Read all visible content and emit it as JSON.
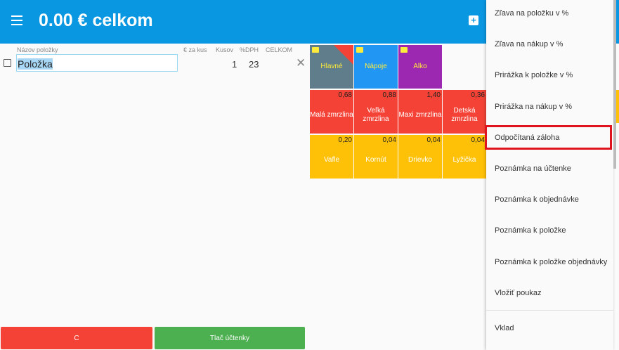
{
  "header": {
    "title": "0.00 € celkom",
    "menu_icon": "hamburger-icon",
    "add_icon": "add-box-icon"
  },
  "table": {
    "columns": {
      "name": "Názov položky",
      "price": "€ za kus",
      "qty": "Kusov",
      "vat": "%DPH",
      "total": "CELKOM"
    },
    "row": {
      "name": "Položka",
      "qty": "1",
      "vat": "23"
    }
  },
  "categories": [
    {
      "label": "Hlavné",
      "color": "#607d8b"
    },
    {
      "label": "Nápoje",
      "color": "#2196f3"
    },
    {
      "label": "Alko",
      "color": "#9c27b0"
    }
  ],
  "products": [
    {
      "label": "Malá zmrzlina",
      "price": "0,68",
      "color": "#f44336"
    },
    {
      "label": "Veľká zmrzlina",
      "price": "0,88",
      "color": "#f44336"
    },
    {
      "label": "Maxi zmrzlina",
      "price": "1,40",
      "color": "#f44336"
    },
    {
      "label": "Detská zmrzlina",
      "price": "0,36",
      "color": "#f44336"
    },
    {
      "label": "Vafle",
      "price": "0,20",
      "color": "#ffc107"
    },
    {
      "label": "Kornút",
      "price": "0,04",
      "color": "#ffc107"
    },
    {
      "label": "Drievko",
      "price": "0,04",
      "color": "#ffc107"
    },
    {
      "label": "Lyžička",
      "price": "0,04",
      "color": "#ffc107"
    }
  ],
  "buttons": {
    "clear": "C",
    "print": "Tlač účtenky"
  },
  "menu": {
    "items": [
      "Zľava na položku v %",
      "Zľava na nákup v %",
      "Prirážka k položke v %",
      "Prirážka na nákup v %",
      "Odpočítaná záloha",
      "Poznámka na účtenke",
      "Poznámka k objednávke",
      "Poznámka k položke",
      "Poznámka k položke objednávky",
      "Vložiť poukaz"
    ],
    "last": "Vklad",
    "highlighted": "Odpočítaná záloha"
  }
}
